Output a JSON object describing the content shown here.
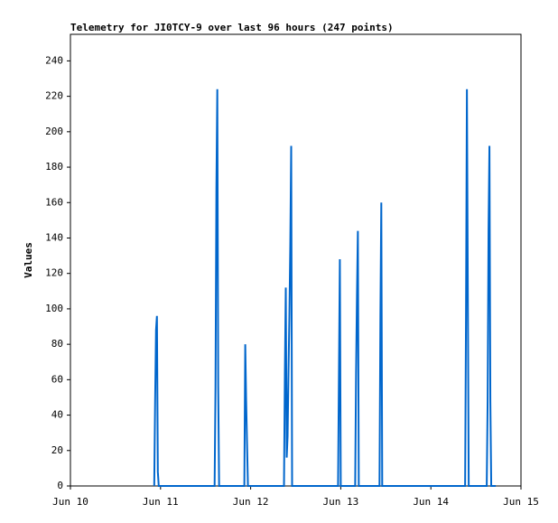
{
  "chart_data": {
    "type": "line",
    "title": "Telemetry for JI0TCY-9 over last 96 hours (247 points)",
    "y_label": "Values",
    "x": [
      10.93,
      10.94,
      10.95,
      10.96,
      10.97,
      10.98,
      11.6,
      11.61,
      11.62,
      11.63,
      11.64,
      11.65,
      11.93,
      11.94,
      11.95,
      11.96,
      11.97,
      12.37,
      12.38,
      12.39,
      12.4,
      12.41,
      12.42,
      12.43,
      12.44,
      12.45,
      12.46,
      12.97,
      12.98,
      12.99,
      13.0,
      13.16,
      13.17,
      13.18,
      13.19,
      13.2,
      13.43,
      13.44,
      13.45,
      13.46,
      14.38,
      14.39,
      14.4,
      14.41,
      14.42,
      14.62,
      14.63,
      14.64,
      14.65,
      14.66,
      14.67,
      14.72
    ],
    "series": [
      {
        "name": "Values",
        "color": "#0066cc",
        "values": [
          0,
          48,
          88,
          96,
          8,
          0,
          0,
          56,
          168,
          224,
          56,
          0,
          0,
          80,
          48,
          24,
          0,
          0,
          64,
          112,
          16,
          28,
          64,
          96,
          136,
          192,
          0,
          0,
          64,
          128,
          0,
          0,
          64,
          108,
          144,
          0,
          0,
          96,
          160,
          0,
          0,
          96,
          224,
          112,
          0,
          0,
          48,
          144,
          192,
          48,
          0,
          0
        ]
      }
    ],
    "xlim": [
      10,
      15
    ],
    "xticks": [
      {
        "value": 10,
        "label": "Jun 10"
      },
      {
        "value": 11,
        "label": "Jun 11"
      },
      {
        "value": 12,
        "label": "Jun 12"
      },
      {
        "value": 13,
        "label": "Jun 13"
      },
      {
        "value": 14,
        "label": "Jun 14"
      },
      {
        "value": 15,
        "label": "Jun 15"
      }
    ],
    "ylim": [
      0,
      255
    ],
    "yticks": [
      0,
      20,
      40,
      60,
      80,
      100,
      120,
      140,
      160,
      180,
      200,
      220,
      240
    ],
    "grid": false
  }
}
